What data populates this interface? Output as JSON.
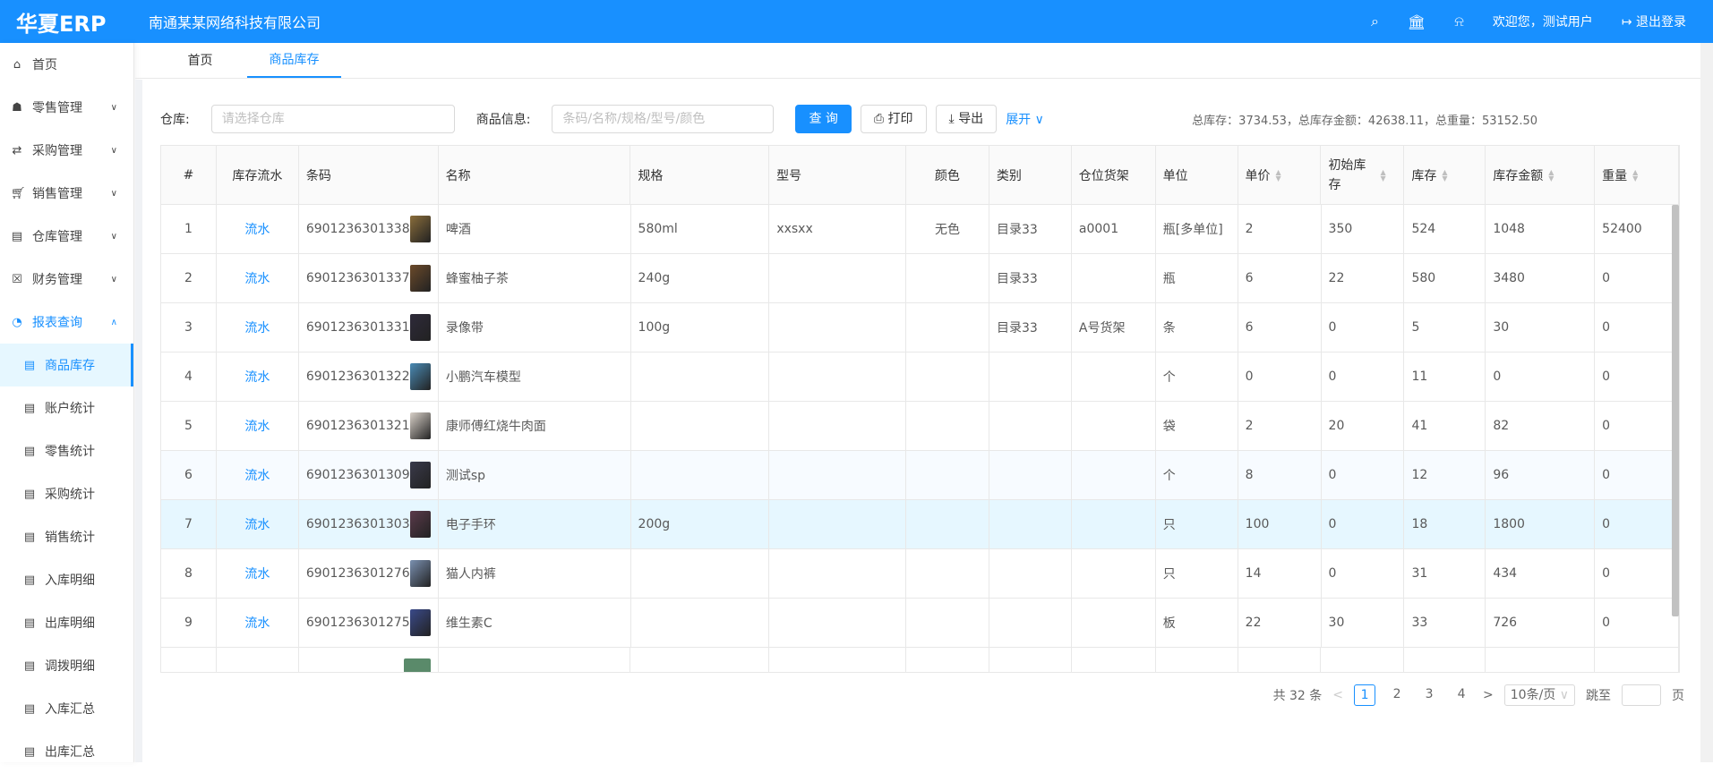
{
  "header": {
    "logo": "华夏ERP",
    "company": "南通某某网络科技有限公司",
    "welcome": "欢迎您，测试用户",
    "logout": "退出登录"
  },
  "sidebar": {
    "items": [
      {
        "label": "首页",
        "icon": "home-icon"
      },
      {
        "label": "零售管理",
        "icon": "gift-icon"
      },
      {
        "label": "采购管理",
        "icon": "swap-icon"
      },
      {
        "label": "销售管理",
        "icon": "cart-icon"
      },
      {
        "label": "仓库管理",
        "icon": "warehouse-icon"
      },
      {
        "label": "财务管理",
        "icon": "finance-icon"
      },
      {
        "label": "报表查询",
        "icon": "pie-chart-icon"
      }
    ],
    "subitems": [
      "商品库存",
      "账户统计",
      "零售统计",
      "采购统计",
      "销售统计",
      "入库明细",
      "出库明细",
      "调拨明细",
      "入库汇总",
      "出库汇总"
    ]
  },
  "tabs": [
    "首页",
    "商品库存"
  ],
  "filters": {
    "warehouse_label": "仓库:",
    "warehouse_placeholder": "请选择仓库",
    "goods_label": "商品信息:",
    "goods_placeholder": "条码/名称/规格/型号/颜色",
    "query": "查 询",
    "print": "打印",
    "export": "导出",
    "expand": "展开",
    "summary": "总库存：3734.53，总库存金额：42638.11，总重量：53152.50"
  },
  "table": {
    "columns": [
      "#",
      "库存流水",
      "条码",
      "名称",
      "规格",
      "型号",
      "颜色",
      "类别",
      "仓位货架",
      "单位",
      "单价",
      "初始库存",
      "库存",
      "库存金额",
      "重量"
    ],
    "rows": [
      [
        "1",
        "流水",
        "6901236301338",
        "啤酒",
        "580ml",
        "xxsxx",
        "无色",
        "目录33",
        "a0001",
        "瓶[多单位]",
        "2",
        "350",
        "524",
        "1048",
        "52400"
      ],
      [
        "2",
        "流水",
        "6901236301337",
        "蜂蜜柚子茶",
        "240g",
        "",
        "",
        "目录33",
        "",
        "瓶",
        "6",
        "22",
        "580",
        "3480",
        "0"
      ],
      [
        "3",
        "流水",
        "6901236301331",
        "录像带",
        "100g",
        "",
        "",
        "目录33",
        "A号货架",
        "条",
        "6",
        "0",
        "5",
        "30",
        "0"
      ],
      [
        "4",
        "流水",
        "6901236301322",
        "小鹏汽车模型",
        "",
        "",
        "",
        "",
        "",
        "个",
        "0",
        "0",
        "11",
        "0",
        "0"
      ],
      [
        "5",
        "流水",
        "6901236301321",
        "康师傅红烧牛肉面",
        "",
        "",
        "",
        "",
        "",
        "袋",
        "2",
        "20",
        "41",
        "82",
        "0"
      ],
      [
        "6",
        "流水",
        "6901236301309",
        "测试sp",
        "",
        "",
        "",
        "",
        "",
        "个",
        "8",
        "0",
        "12",
        "96",
        "0"
      ],
      [
        "7",
        "流水",
        "6901236301303",
        "电子手环",
        "200g",
        "",
        "",
        "",
        "",
        "只",
        "100",
        "0",
        "18",
        "1800",
        "0"
      ],
      [
        "8",
        "流水",
        "6901236301276",
        "猫人内裤",
        "",
        "",
        "",
        "",
        "",
        "只",
        "14",
        "0",
        "31",
        "434",
        "0"
      ],
      [
        "9",
        "流水",
        "6901236301275",
        "维生素C",
        "",
        "",
        "",
        "",
        "",
        "板",
        "22",
        "30",
        "33",
        "726",
        "0"
      ]
    ]
  },
  "pagination": {
    "total": "共 32 条",
    "pages": [
      "1",
      "2",
      "3",
      "4"
    ],
    "current": "1",
    "page_size": "10条/页",
    "jump_label": "跳至",
    "page_suffix": "页"
  }
}
